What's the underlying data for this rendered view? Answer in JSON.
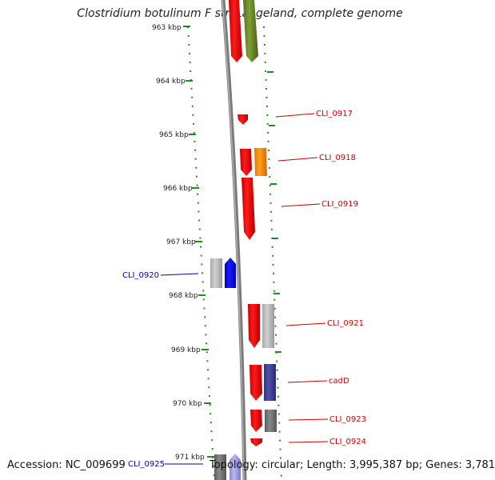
{
  "title": "Clostridium botulinum F str. Langeland, complete genome",
  "accession": "Accession: NC_009699",
  "topology": "Topology: circular; Length: 3,995,387 bp; Genes: 3,781",
  "colors": {
    "red": "#ff0000",
    "green": "#6b8e23",
    "orange": "#ff8c00",
    "blue": "#0000ff",
    "navy": "#3c3c8c",
    "grey": "#a0a0a0",
    "darkgrey": "#707070",
    "lightgrey": "#b4b4c8",
    "lavender": "#9a9ae6",
    "dots": "#228b22",
    "backbone": "#808080",
    "label_red": "#cc0000",
    "label_blue": "#000099"
  },
  "ticks": [
    "963 kbp",
    "964 kbp",
    "965 kbp",
    "966 kbp",
    "967 kbp",
    "968 kbp",
    "969 kbp",
    "970 kbp",
    "971 kbp"
  ],
  "genes": [
    {
      "label": "",
      "color": "red",
      "side": "right"
    },
    {
      "label": "",
      "color": "green",
      "side": "right"
    },
    {
      "label": "CLI_0917",
      "color": "red",
      "side": "right"
    },
    {
      "label": "CLI_0918",
      "color": "red",
      "side": "right"
    },
    {
      "label": "",
      "color": "orange",
      "side": "right"
    },
    {
      "label": "CLI_0919",
      "color": "red",
      "side": "right"
    },
    {
      "label": "",
      "color": "grey",
      "side": "left"
    },
    {
      "label": "CLI_0920",
      "color": "blue",
      "side": "left"
    },
    {
      "label": "CLI_0921",
      "color": "red",
      "side": "right"
    },
    {
      "label": "",
      "color": "grey",
      "side": "right"
    },
    {
      "label": "cadD",
      "color": "red",
      "side": "right"
    },
    {
      "label": "",
      "color": "navy",
      "side": "right"
    },
    {
      "label": "CLI_0923",
      "color": "red",
      "side": "right"
    },
    {
      "label": "",
      "color": "darkgrey",
      "side": "right"
    },
    {
      "label": "CLI_0924",
      "color": "red",
      "side": "right"
    },
    {
      "label": "",
      "color": "darkgrey",
      "side": "left"
    },
    {
      "label": "CLI_0925",
      "color": "lavender",
      "side": "left"
    }
  ]
}
